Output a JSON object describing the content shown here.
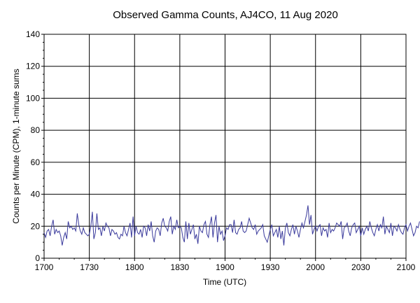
{
  "chart_data": {
    "type": "line",
    "title": "Observed Gamma Counts, AJ4CO, 11 Aug 2020",
    "xlabel": "Time (UTC)",
    "ylabel": "Counts per Minute (CPM), 1-minute sums",
    "xlim": [
      "17:00",
      "21:00"
    ],
    "ylim": [
      0,
      140
    ],
    "x_tick_labels": [
      "1700",
      "1730",
      "1800",
      "1830",
      "1900",
      "1930",
      "2000",
      "2030",
      "2100"
    ],
    "y_tick_labels": [
      "0",
      "20",
      "40",
      "60",
      "80",
      "100",
      "120",
      "140"
    ],
    "y_tick_values": [
      0,
      20,
      40,
      60,
      80,
      100,
      120,
      140
    ],
    "grid": true,
    "legend": "none",
    "series_color": "#3a3a9c",
    "series": [
      {
        "x_start": "17:00",
        "x_step_minutes": 1,
        "values": [
          16,
          13,
          17,
          18,
          14,
          20,
          24,
          15,
          18,
          16,
          17,
          14,
          8,
          13,
          16,
          12,
          23,
          19,
          20,
          18,
          19,
          17,
          28,
          21,
          17,
          15,
          19,
          16,
          15,
          14,
          15,
          20,
          29,
          12,
          16,
          28,
          18,
          19,
          14,
          20,
          17,
          22,
          20,
          19,
          14,
          18,
          17,
          15,
          16,
          13,
          12,
          15,
          14,
          20,
          16,
          14,
          18,
          22,
          13,
          26,
          14,
          20,
          16,
          15,
          18,
          13,
          20,
          19,
          14,
          21,
          17,
          23,
          14,
          10,
          17,
          19,
          18,
          14,
          22,
          25,
          20,
          19,
          17,
          23,
          26,
          15,
          20,
          18,
          24,
          19,
          20,
          19,
          13,
          10,
          23,
          12,
          22,
          15,
          18,
          21,
          12,
          15,
          9,
          20,
          17,
          16,
          21,
          23,
          15,
          13,
          21,
          26,
          13,
          22,
          27,
          10,
          20,
          15,
          17,
          11,
          14,
          19,
          18,
          21,
          21,
          16,
          24,
          16,
          15,
          18,
          19,
          23,
          17,
          16,
          17,
          21,
          25,
          22,
          19,
          18,
          21,
          15,
          17,
          18,
          19,
          21,
          14,
          12,
          10,
          14,
          18,
          21,
          14,
          16,
          18,
          13,
          20,
          12,
          17,
          8,
          19,
          22,
          16,
          14,
          18,
          21,
          15,
          20,
          17,
          13,
          18,
          22,
          19,
          23,
          27,
          33,
          21,
          27,
          15,
          18,
          20,
          17,
          20,
          21,
          14,
          19,
          17,
          18,
          13,
          22,
          16,
          18,
          17,
          19,
          22,
          21,
          20,
          23,
          12,
          19,
          20,
          22,
          17,
          14,
          19,
          21,
          22,
          16,
          18,
          20,
          14,
          19,
          15,
          18,
          20,
          17,
          23,
          19,
          16,
          14,
          18,
          21,
          17,
          21,
          19,
          26,
          15,
          20,
          18,
          16,
          22,
          14,
          20,
          19,
          17,
          21,
          18,
          16,
          15,
          19,
          21,
          17,
          20,
          22,
          18,
          14,
          16,
          20,
          19,
          23
        ]
      }
    ]
  }
}
